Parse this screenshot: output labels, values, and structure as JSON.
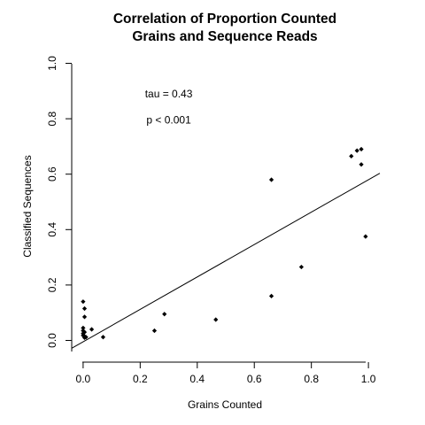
{
  "chart_data": {
    "type": "scatter",
    "title_lines": [
      "Correlation of Proportion Counted",
      "Grains and Sequence Reads"
    ],
    "xlabel": "Grains Counted",
    "ylabel": "Classified Sequences",
    "xlim": [
      -0.04,
      1.04
    ],
    "ylim": [
      -0.04,
      1.04
    ],
    "xticks": [
      0.0,
      0.2,
      0.4,
      0.6,
      0.8,
      1.0
    ],
    "xtick_labels": [
      "0.0",
      "0.2",
      "0.4",
      "0.6",
      "0.8",
      "1.0"
    ],
    "yticks": [
      0.0,
      0.2,
      0.4,
      0.6,
      0.8,
      1.0
    ],
    "ytick_labels": [
      "0.0",
      "0.2",
      "0.4",
      "0.6",
      "0.8",
      "1.0"
    ],
    "annotations": [
      {
        "text": "tau = 0.43",
        "x": 0.3,
        "y": 0.89
      },
      {
        "text": "p < 0.001",
        "x": 0.3,
        "y": 0.795
      }
    ],
    "regression_line": {
      "intercept": -0.005,
      "slope": 0.585
    },
    "points": [
      {
        "x": 0.0,
        "y": 0.14
      },
      {
        "x": 0.005,
        "y": 0.115
      },
      {
        "x": 0.005,
        "y": 0.085
      },
      {
        "x": 0.0,
        "y": 0.045
      },
      {
        "x": 0.0,
        "y": 0.035
      },
      {
        "x": 0.005,
        "y": 0.03
      },
      {
        "x": 0.0,
        "y": 0.025
      },
      {
        "x": 0.0,
        "y": 0.018
      },
      {
        "x": 0.005,
        "y": 0.015
      },
      {
        "x": 0.01,
        "y": 0.012
      },
      {
        "x": 0.005,
        "y": 0.01
      },
      {
        "x": 0.03,
        "y": 0.04
      },
      {
        "x": 0.07,
        "y": 0.012
      },
      {
        "x": 0.25,
        "y": 0.035
      },
      {
        "x": 0.285,
        "y": 0.095
      },
      {
        "x": 0.465,
        "y": 0.075
      },
      {
        "x": 0.66,
        "y": 0.16
      },
      {
        "x": 0.66,
        "y": 0.58
      },
      {
        "x": 0.765,
        "y": 0.265
      },
      {
        "x": 0.94,
        "y": 0.665
      },
      {
        "x": 0.96,
        "y": 0.685
      },
      {
        "x": 0.975,
        "y": 0.69
      },
      {
        "x": 0.975,
        "y": 0.635
      },
      {
        "x": 0.99,
        "y": 0.375
      }
    ]
  }
}
